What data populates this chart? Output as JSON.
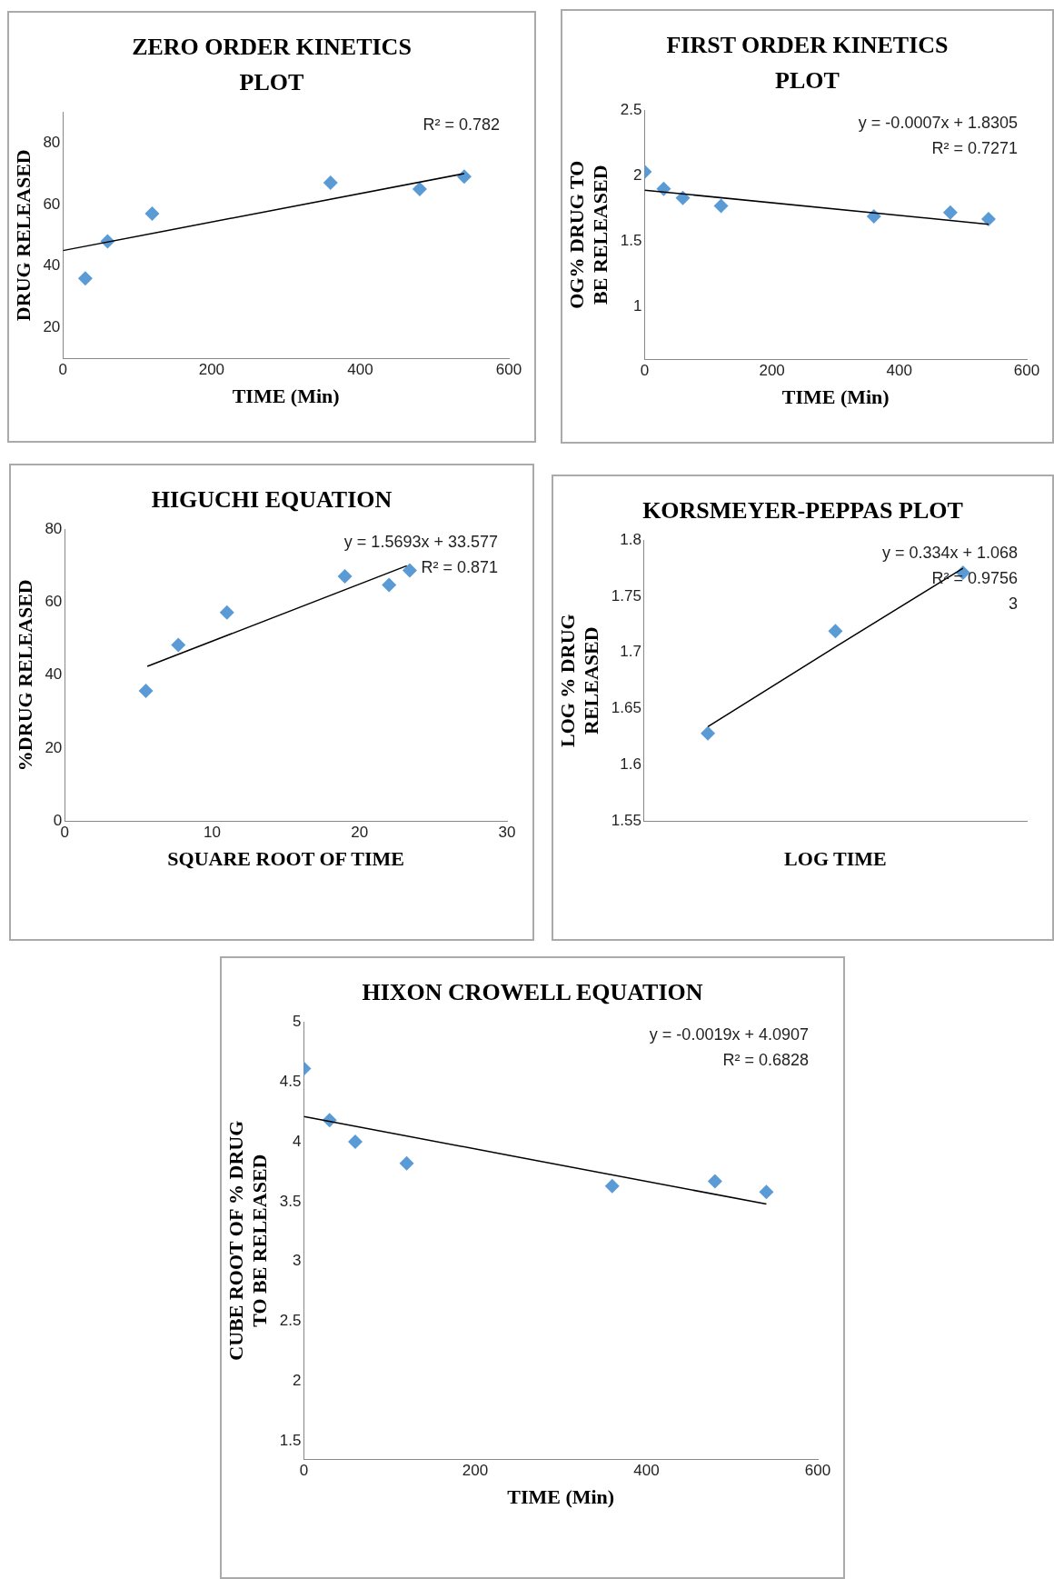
{
  "chart_data": [
    {
      "type": "scatter",
      "title": "ZERO ORDER KINETICS PLOT",
      "xlabel": "TIME (Min)",
      "ylabel": "DRUG RELEASED",
      "marker": "diamond",
      "grid": false,
      "xlim": [
        0,
        600
      ],
      "xticks": [
        0,
        200,
        400,
        600
      ],
      "ylim": [
        10,
        90
      ],
      "yticks": [
        20,
        40,
        60,
        80
      ],
      "annotations": [
        "R² = 0.782"
      ],
      "series": [
        {
          "color": "#5b9bd5",
          "x": [
            30,
            60,
            120,
            360,
            480,
            540
          ],
          "values": [
            36,
            48,
            57,
            67,
            65,
            69
          ]
        },
        {
          "type": "line",
          "color": "#000000",
          "marker": "none",
          "x": [
            0,
            540
          ],
          "values": [
            45,
            70
          ]
        }
      ]
    },
    {
      "type": "scatter",
      "title": "FIRST ORDER KINETICS PLOT",
      "xlabel": "TIME (Min)",
      "ylabel": "OG% DRUG TO BE RELEASED",
      "marker": "diamond",
      "grid": false,
      "xlim": [
        0,
        600
      ],
      "xticks": [
        0,
        200,
        400,
        600
      ],
      "ylim": [
        0.6,
        2.5
      ],
      "yticks": [
        1,
        1.5,
        2,
        2.5
      ],
      "annotations": [
        "y = -0.0007x + 1.8305",
        "R² = 0.7271"
      ],
      "series": [
        {
          "color": "#5b9bd5",
          "x": [
            0,
            30,
            60,
            120,
            360,
            480,
            540
          ],
          "values": [
            2.03,
            1.9,
            1.83,
            1.77,
            1.69,
            1.72,
            1.67
          ]
        },
        {
          "type": "line",
          "color": "#000000",
          "marker": "none",
          "x": [
            0,
            540
          ],
          "values": [
            1.89,
            1.63
          ]
        }
      ]
    },
    {
      "type": "scatter",
      "title": "HIGUCHI EQUATION",
      "xlabel": "SQUARE ROOT OF TIME",
      "ylabel": "%DRUG RELEASED",
      "marker": "diamond",
      "grid": false,
      "xlim": [
        0,
        30
      ],
      "xticks": [
        0,
        10,
        20,
        30
      ],
      "ylim": [
        0,
        80
      ],
      "yticks": [
        0,
        20,
        40,
        60,
        80
      ],
      "annotations": [
        "y = 1.5693x + 33.577",
        "R² = 0.871"
      ],
      "series": [
        {
          "color": "#5b9bd5",
          "x": [
            5.5,
            7.7,
            11,
            19,
            22,
            23.4
          ],
          "values": [
            35.7,
            48.3,
            57.2,
            67.1,
            64.7,
            68.7
          ]
        },
        {
          "type": "line",
          "color": "#000000",
          "marker": "none",
          "x": [
            5.6,
            23.2
          ],
          "values": [
            42.4,
            70
          ]
        }
      ]
    },
    {
      "type": "scatter",
      "title": "KORSMEYER-PEPPAS PLOT",
      "xlabel": "LOG TIME",
      "ylabel": "LOG % DRUG RELEASED",
      "marker": "diamond",
      "grid": false,
      "categories": [
        null,
        null,
        null
      ],
      "ylim": [
        1.55,
        1.8
      ],
      "yticks": [
        1.55,
        1.6,
        1.65,
        1.7,
        1.75,
        1.8
      ],
      "annotations": [
        "y = 0.334x + 1.068",
        "R² = 0.9756",
        "3"
      ],
      "series": [
        {
          "color": "#5b9bd5",
          "values": [
            1.628,
            1.719,
            1.771
          ]
        },
        {
          "type": "line",
          "color": "#000000",
          "marker": "none",
          "values": [
            1.634,
            1.705,
            1.775
          ]
        }
      ]
    },
    {
      "type": "scatter",
      "title": "HIXON CROWELL EQUATION",
      "xlabel": "TIME (Min)",
      "ylabel": "CUBE ROOT OF % DRUG TO BE RELEASED",
      "marker": "diamond",
      "grid": false,
      "xlim": [
        0,
        600
      ],
      "xticks": [
        0,
        200,
        400,
        600
      ],
      "ylim": [
        1.35,
        5
      ],
      "yticks": [
        1.5,
        2,
        2.5,
        3,
        3.5,
        4,
        4.5,
        5
      ],
      "annotations": [
        "y = -0.0019x + 4.0907",
        "R² = 0.6828"
      ],
      "series": [
        {
          "color": "#5b9bd5",
          "x": [
            0,
            30,
            60,
            120,
            360,
            480,
            540
          ],
          "values": [
            4.61,
            4.18,
            4.0,
            3.82,
            3.63,
            3.67,
            3.58
          ]
        },
        {
          "type": "line",
          "color": "#000000",
          "marker": "none",
          "x": [
            0,
            540
          ],
          "values": [
            4.21,
            3.48
          ]
        }
      ]
    }
  ]
}
